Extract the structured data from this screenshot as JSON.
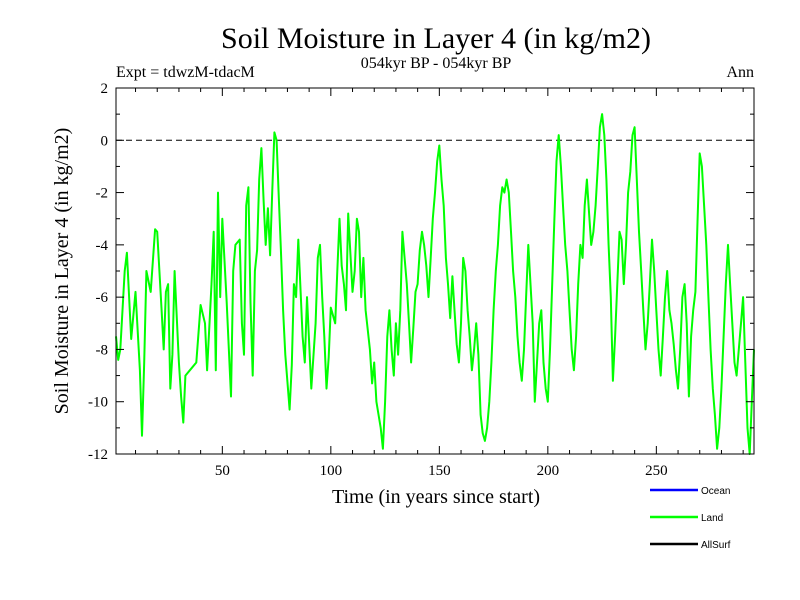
{
  "chart_data": {
    "type": "line",
    "title": "Soil Moisture in Layer 4 (in kg/m2)",
    "subtitle": "054kyr BP - 054kyr BP",
    "expt_label": "Expt = tdwzM-tdacM",
    "season_label": "Ann",
    "xlabel": "Time (in years since start)",
    "ylabel": "Soil Moisture in Layer 4 (in kg/m2)",
    "xlim": [
      1,
      295
    ],
    "ylim": [
      -12,
      2
    ],
    "x_ticks": [
      "50",
      "100",
      "150",
      "200",
      "250"
    ],
    "x_tick_values": [
      50,
      100,
      150,
      200,
      250
    ],
    "y_ticks": [
      "2",
      "0",
      "-2",
      "-4",
      "-6",
      "-8",
      "-10",
      "-12"
    ],
    "y_tick_values": [
      2,
      0,
      -2,
      -4,
      -6,
      -8,
      -10,
      -12
    ],
    "reference_line": 0,
    "legend": [
      {
        "name": "Ocean",
        "color": "#0000ff"
      },
      {
        "name": "Land",
        "color": "#00ff00"
      },
      {
        "name": "AllSurf",
        "color": "#000000"
      }
    ],
    "series": [
      {
        "name": "Land",
        "color": "#00ff00",
        "keypoints": [
          [
            1,
            -7.5
          ],
          [
            2,
            -8.4
          ],
          [
            3,
            -8.0
          ],
          [
            5,
            -5.0
          ],
          [
            6,
            -4.3
          ],
          [
            8,
            -7.6
          ],
          [
            10,
            -5.8
          ],
          [
            12,
            -8.8
          ],
          [
            13,
            -11.3
          ],
          [
            14,
            -8.5
          ],
          [
            15,
            -5.0
          ],
          [
            17,
            -5.8
          ],
          [
            19,
            -3.4
          ],
          [
            20,
            -3.5
          ],
          [
            22,
            -6.5
          ],
          [
            23,
            -8.0
          ],
          [
            24,
            -5.8
          ],
          [
            25,
            -5.5
          ],
          [
            26,
            -9.5
          ],
          [
            27,
            -8.2
          ],
          [
            28,
            -5.0
          ],
          [
            29,
            -6.8
          ],
          [
            30,
            -8.5
          ],
          [
            31,
            -9.8
          ],
          [
            32,
            -10.8
          ],
          [
            33,
            -9.0
          ],
          [
            36,
            -8.7
          ],
          [
            38,
            -8.5
          ],
          [
            40,
            -6.3
          ],
          [
            42,
            -7.0
          ],
          [
            43,
            -8.8
          ],
          [
            45,
            -5.5
          ],
          [
            46,
            -3.5
          ],
          [
            47,
            -8.8
          ],
          [
            48,
            -2.0
          ],
          [
            49,
            -6.0
          ],
          [
            50,
            -3.0
          ],
          [
            52,
            -6.2
          ],
          [
            54,
            -9.8
          ],
          [
            55,
            -5.0
          ],
          [
            56,
            -4.0
          ],
          [
            58,
            -3.8
          ],
          [
            59,
            -7.0
          ],
          [
            60,
            -8.2
          ],
          [
            61,
            -2.5
          ],
          [
            62,
            -1.8
          ],
          [
            63,
            -6.2
          ],
          [
            64,
            -9.0
          ],
          [
            65,
            -5.0
          ],
          [
            66,
            -4.2
          ],
          [
            67,
            -1.5
          ],
          [
            68,
            -0.3
          ],
          [
            69,
            -2.3
          ],
          [
            70,
            -4.0
          ],
          [
            71,
            -2.6
          ],
          [
            72,
            -4.4
          ],
          [
            73,
            -2.0
          ],
          [
            74,
            0.3
          ],
          [
            75,
            0.0
          ],
          [
            76,
            -2.2
          ],
          [
            77,
            -4.2
          ],
          [
            78,
            -6.5
          ],
          [
            79,
            -8.2
          ],
          [
            81,
            -10.3
          ],
          [
            82,
            -8.6
          ],
          [
            83,
            -5.5
          ],
          [
            84,
            -6.0
          ],
          [
            85,
            -3.8
          ],
          [
            87,
            -7.5
          ],
          [
            88,
            -8.5
          ],
          [
            89,
            -6.0
          ],
          [
            91,
            -9.5
          ],
          [
            93,
            -7.0
          ],
          [
            94,
            -4.5
          ],
          [
            95,
            -4.0
          ],
          [
            96,
            -6.0
          ],
          [
            97,
            -7.5
          ],
          [
            98,
            -9.5
          ],
          [
            99,
            -8.3
          ],
          [
            100,
            -6.4
          ],
          [
            102,
            -7.0
          ],
          [
            103,
            -5.0
          ],
          [
            104,
            -3.0
          ],
          [
            105,
            -4.8
          ],
          [
            106,
            -5.5
          ],
          [
            107,
            -6.5
          ],
          [
            108,
            -2.8
          ],
          [
            110,
            -5.8
          ],
          [
            111,
            -5.0
          ],
          [
            112,
            -3.0
          ],
          [
            113,
            -3.5
          ],
          [
            114,
            -6.0
          ],
          [
            115,
            -4.5
          ],
          [
            116,
            -6.5
          ],
          [
            118,
            -8.0
          ],
          [
            119,
            -9.3
          ],
          [
            120,
            -8.5
          ],
          [
            121,
            -10.0
          ],
          [
            123,
            -11.0
          ],
          [
            124,
            -11.8
          ],
          [
            125,
            -10.0
          ],
          [
            126,
            -7.5
          ],
          [
            127,
            -6.5
          ],
          [
            128,
            -8.0
          ],
          [
            129,
            -9.0
          ],
          [
            130,
            -7.0
          ],
          [
            131,
            -8.2
          ],
          [
            132,
            -6.5
          ],
          [
            133,
            -3.5
          ],
          [
            134,
            -4.5
          ],
          [
            135,
            -5.5
          ],
          [
            136,
            -7.0
          ],
          [
            137,
            -8.5
          ],
          [
            138,
            -7.2
          ],
          [
            139,
            -5.8
          ],
          [
            140,
            -5.5
          ],
          [
            141,
            -4.2
          ],
          [
            142,
            -3.5
          ],
          [
            143,
            -4.0
          ],
          [
            144,
            -4.8
          ],
          [
            145,
            -6.0
          ],
          [
            146,
            -4.5
          ],
          [
            147,
            -3.0
          ],
          [
            148,
            -2.0
          ],
          [
            149,
            -0.8
          ],
          [
            150,
            -0.2
          ],
          [
            151,
            -1.5
          ],
          [
            152,
            -2.5
          ],
          [
            153,
            -4.5
          ],
          [
            154,
            -5.5
          ],
          [
            155,
            -6.8
          ],
          [
            156,
            -5.2
          ],
          [
            157,
            -6.5
          ],
          [
            158,
            -7.8
          ],
          [
            159,
            -8.5
          ],
          [
            160,
            -7.0
          ],
          [
            161,
            -4.5
          ],
          [
            162,
            -5.0
          ],
          [
            163,
            -6.5
          ],
          [
            164,
            -7.5
          ],
          [
            165,
            -8.8
          ],
          [
            166,
            -8.0
          ],
          [
            167,
            -7.0
          ],
          [
            168,
            -8.2
          ],
          [
            169,
            -10.5
          ],
          [
            170,
            -11.2
          ],
          [
            171,
            -11.5
          ],
          [
            172,
            -11.0
          ],
          [
            173,
            -10.0
          ],
          [
            174,
            -8.5
          ],
          [
            175,
            -6.5
          ],
          [
            176,
            -5.0
          ],
          [
            177,
            -4.0
          ],
          [
            178,
            -2.5
          ],
          [
            179,
            -1.8
          ],
          [
            180,
            -2.0
          ],
          [
            181,
            -1.5
          ],
          [
            182,
            -2.0
          ],
          [
            183,
            -3.5
          ],
          [
            184,
            -5.0
          ],
          [
            185,
            -6.0
          ],
          [
            186,
            -7.5
          ],
          [
            187,
            -8.5
          ],
          [
            188,
            -9.2
          ],
          [
            189,
            -8.0
          ],
          [
            190,
            -6.0
          ],
          [
            191,
            -4.0
          ],
          [
            192,
            -5.5
          ],
          [
            193,
            -7.0
          ],
          [
            194,
            -10.0
          ],
          [
            195,
            -8.5
          ],
          [
            196,
            -7.0
          ],
          [
            197,
            -6.5
          ],
          [
            198,
            -8.5
          ],
          [
            199,
            -9.5
          ],
          [
            200,
            -10.0
          ],
          [
            201,
            -8.0
          ],
          [
            202,
            -5.5
          ],
          [
            203,
            -3.0
          ],
          [
            204,
            -0.8
          ],
          [
            205,
            0.2
          ],
          [
            206,
            -1.0
          ],
          [
            207,
            -2.5
          ],
          [
            208,
            -4.0
          ],
          [
            209,
            -5.0
          ],
          [
            210,
            -6.5
          ],
          [
            211,
            -8.0
          ],
          [
            212,
            -8.8
          ],
          [
            213,
            -7.5
          ],
          [
            214,
            -5.5
          ],
          [
            215,
            -4.0
          ],
          [
            216,
            -4.5
          ],
          [
            217,
            -2.5
          ],
          [
            218,
            -1.5
          ],
          [
            219,
            -2.8
          ],
          [
            220,
            -4.0
          ],
          [
            221,
            -3.5
          ],
          [
            222,
            -2.5
          ],
          [
            223,
            -1.0
          ],
          [
            224,
            0.5
          ],
          [
            225,
            1.0
          ],
          [
            226,
            0.2
          ],
          [
            227,
            -1.5
          ],
          [
            228,
            -4.0
          ],
          [
            229,
            -6.0
          ],
          [
            230,
            -9.2
          ],
          [
            231,
            -7.5
          ],
          [
            232,
            -5.5
          ],
          [
            233,
            -3.5
          ],
          [
            234,
            -3.8
          ],
          [
            235,
            -5.5
          ],
          [
            236,
            -4.0
          ],
          [
            237,
            -2.0
          ],
          [
            238,
            -1.2
          ],
          [
            239,
            0.2
          ],
          [
            240,
            0.5
          ],
          [
            241,
            -1.5
          ],
          [
            242,
            -3.5
          ],
          [
            243,
            -5.0
          ],
          [
            244,
            -6.5
          ],
          [
            245,
            -8.0
          ],
          [
            246,
            -7.0
          ],
          [
            247,
            -5.5
          ],
          [
            248,
            -3.8
          ],
          [
            249,
            -5.0
          ],
          [
            250,
            -6.5
          ],
          [
            251,
            -8.0
          ],
          [
            252,
            -9.0
          ],
          [
            253,
            -7.5
          ],
          [
            254,
            -6.0
          ],
          [
            255,
            -5.0
          ],
          [
            256,
            -6.5
          ],
          [
            257,
            -7.0
          ],
          [
            258,
            -7.8
          ],
          [
            259,
            -8.8
          ],
          [
            260,
            -9.5
          ],
          [
            261,
            -8.0
          ],
          [
            262,
            -6.0
          ],
          [
            263,
            -5.5
          ],
          [
            264,
            -7.0
          ],
          [
            265,
            -9.8
          ],
          [
            266,
            -7.5
          ],
          [
            267,
            -6.5
          ],
          [
            268,
            -5.8
          ],
          [
            269,
            -3.0
          ],
          [
            270,
            -0.5
          ],
          [
            271,
            -1.0
          ],
          [
            272,
            -2.5
          ],
          [
            273,
            -4.0
          ],
          [
            274,
            -6.0
          ],
          [
            275,
            -8.0
          ],
          [
            276,
            -9.5
          ],
          [
            277,
            -10.5
          ],
          [
            278,
            -11.8
          ],
          [
            279,
            -11.0
          ],
          [
            280,
            -9.5
          ],
          [
            281,
            -7.5
          ],
          [
            282,
            -5.5
          ],
          [
            283,
            -4.0
          ],
          [
            284,
            -5.5
          ],
          [
            285,
            -7.0
          ],
          [
            286,
            -8.5
          ],
          [
            287,
            -9.0
          ],
          [
            288,
            -8.0
          ],
          [
            289,
            -7.0
          ],
          [
            290,
            -6.0
          ],
          [
            291,
            -8.5
          ],
          [
            292,
            -11.0
          ],
          [
            293,
            -12.0
          ],
          [
            294,
            -10.0
          ],
          [
            295,
            -8.0
          ]
        ]
      }
    ]
  }
}
